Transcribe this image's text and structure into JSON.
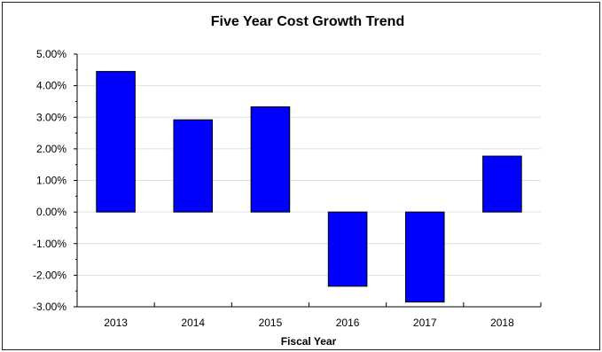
{
  "chart_data": {
    "type": "bar",
    "title": "Five Year Cost Growth Trend",
    "xlabel": "Fiscal Year",
    "ylabel": "",
    "categories": [
      "2013",
      "2014",
      "2015",
      "2016",
      "2017",
      "2018"
    ],
    "values": [
      4.45,
      2.92,
      3.33,
      -2.35,
      -2.85,
      1.77
    ],
    "value_unit": "%",
    "ylim": [
      -3,
      5
    ],
    "yticks": [
      "5.00%",
      "4.00%",
      "3.00%",
      "2.00%",
      "1.00%",
      "0.00%",
      "-1.00%",
      "-2.00%",
      "-3.00%"
    ],
    "ytick_values": [
      5,
      4,
      3,
      2,
      1,
      0,
      -1,
      -2,
      -3
    ],
    "grid": true,
    "legend": "none",
    "colors": {
      "bar_fill": "#0000ff",
      "bar_stroke": "#000000",
      "grid": "#e0e0e0",
      "axis": "#000000"
    }
  }
}
